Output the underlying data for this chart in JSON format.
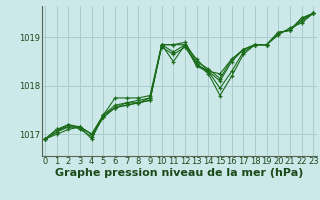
{
  "bg_color": "#cce8e8",
  "grid_color": "#aacccc",
  "line_color": "#1a6b1a",
  "ylabel_values": [
    1017,
    1018,
    1019
  ],
  "xlim": [
    -0.3,
    23.3
  ],
  "ylim": [
    1016.55,
    1019.65
  ],
  "xticks": [
    0,
    1,
    2,
    3,
    4,
    5,
    6,
    7,
    8,
    9,
    10,
    11,
    12,
    13,
    14,
    15,
    16,
    17,
    18,
    19,
    20,
    21,
    22,
    23
  ],
  "series": [
    [
      1016.9,
      1017.05,
      1017.15,
      1017.15,
      1017.0,
      1017.35,
      1017.55,
      1017.6,
      1017.65,
      1017.7,
      1018.85,
      1018.85,
      1018.85,
      1018.4,
      1018.3,
      1018.25,
      1018.55,
      1018.75,
      1018.85,
      1018.85,
      1019.1,
      1019.15,
      1019.4,
      1019.5
    ],
    [
      1016.9,
      1017.05,
      1017.2,
      1017.1,
      1016.95,
      1017.35,
      1017.55,
      1017.6,
      1017.65,
      1017.7,
      1018.85,
      1018.5,
      1018.85,
      1018.55,
      1018.3,
      1018.1,
      1018.5,
      1018.75,
      1018.85,
      1018.85,
      1019.1,
      1019.15,
      1019.35,
      1019.5
    ],
    [
      1016.9,
      1017.0,
      1017.1,
      1017.15,
      1017.0,
      1017.4,
      1017.55,
      1017.65,
      1017.65,
      1017.75,
      1018.8,
      1018.65,
      1018.8,
      1018.45,
      1018.25,
      1017.8,
      1018.2,
      1018.65,
      1018.85,
      1018.85,
      1019.05,
      1019.2,
      1019.3,
      1019.5
    ],
    [
      1016.9,
      1017.1,
      1017.15,
      1017.15,
      1017.0,
      1017.4,
      1017.75,
      1017.75,
      1017.75,
      1017.8,
      1018.85,
      1018.85,
      1018.9,
      1018.5,
      1018.35,
      1018.15,
      1018.55,
      1018.75,
      1018.85,
      1018.85,
      1019.1,
      1019.15,
      1019.4,
      1019.5
    ],
    [
      1016.9,
      1017.1,
      1017.2,
      1017.15,
      1016.9,
      1017.4,
      1017.6,
      1017.65,
      1017.7,
      1017.75,
      1018.85,
      1018.7,
      1018.85,
      1018.45,
      1018.3,
      1017.95,
      1018.3,
      1018.7,
      1018.85,
      1018.85,
      1019.1,
      1019.15,
      1019.35,
      1019.5
    ]
  ],
  "xlabel": "Graphe pression niveau de la mer (hPa)",
  "title_fontsize": 8,
  "tick_fontsize": 6,
  "label_color": "#1a4a1a"
}
